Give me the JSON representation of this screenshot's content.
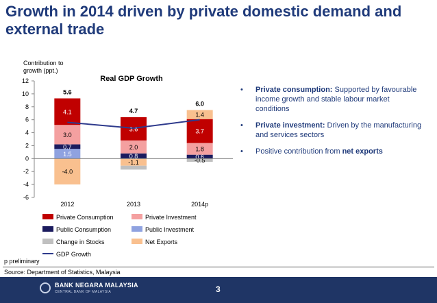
{
  "slide": {
    "title": "Growth in 2014 driven by private domestic demand and external trade",
    "note": "p preliminary",
    "source": "Source: Department of Statistics, Malaysia",
    "page_number": "3",
    "bank_name": "BANK NEGARA MALAYSIA",
    "bank_subtitle": "CENTRAL BANK OF MALAYSIA",
    "footer_color": "#1f3565"
  },
  "bullets": [
    {
      "bold": "Private consumption:",
      "text": " Supported by favourable income growth and stable labour market conditions"
    },
    {
      "bold": "Private investment:",
      "text": " Driven by the manufacturing and services sectors"
    },
    {
      "pre": "Positive contribution from ",
      "bold": "net exports",
      "text": ""
    }
  ],
  "chart_data": {
    "type": "bar",
    "stacked": true,
    "title": "Real GDP Growth",
    "ylabel": "Contribution to growth (ppt.)",
    "ylim": [
      -6,
      12
    ],
    "yticks": [
      -6,
      -4,
      -2,
      0,
      2,
      4,
      6,
      8,
      10,
      12
    ],
    "categories": [
      "2012",
      "2013",
      "2014p"
    ],
    "series": [
      {
        "name": "Public Investment",
        "color": "#8fa2e0",
        "values": [
          1.5,
          0,
          0
        ],
        "labels": [
          "1.5",
          "",
          ""
        ]
      },
      {
        "name": "Public Consumption",
        "color": "#1b1b5e",
        "values": [
          0.7,
          0.8,
          0.6
        ],
        "labels": [
          "0.7",
          "0.8",
          "0.6"
        ]
      },
      {
        "name": "Private Investment",
        "color": "#f4a0a0",
        "values": [
          3.0,
          2.0,
          1.8
        ],
        "labels": [
          "3.0",
          "2.0",
          "1.8"
        ]
      },
      {
        "name": "Private Consumption",
        "color": "#c00000",
        "values": [
          4.1,
          3.6,
          3.7
        ],
        "labels": [
          "4.1",
          "3.6",
          "3.7"
        ]
      },
      {
        "name": "Net Exports",
        "color": "#f9c08f",
        "values": [
          -4.0,
          -1.1,
          1.4
        ],
        "labels": [
          "-4.0",
          "-1.1",
          "1.4"
        ]
      },
      {
        "name": "Change in Stocks",
        "color": "#c0c0c0",
        "values": [
          0,
          -0.6,
          -0.5
        ],
        "labels": [
          "",
          "",
          "-0.5"
        ]
      }
    ],
    "line": {
      "name": "GDP Growth",
      "color": "#2e3a8c",
      "values": [
        5.6,
        4.7,
        6.0
      ]
    },
    "gdp_labels": [
      "5.6",
      "4.7",
      "6.0"
    ],
    "legend": [
      {
        "name": "Private Consumption",
        "color": "#c00000",
        "kind": "box"
      },
      {
        "name": "Private Investment",
        "color": "#f4a0a0",
        "kind": "box"
      },
      {
        "name": "Public Consumption",
        "color": "#1b1b5e",
        "kind": "box"
      },
      {
        "name": "Public Investment",
        "color": "#8fa2e0",
        "kind": "box"
      },
      {
        "name": "Change in Stocks",
        "color": "#c0c0c0",
        "kind": "box"
      },
      {
        "name": "Net Exports",
        "color": "#f9c08f",
        "kind": "box"
      },
      {
        "name": "GDP Growth",
        "color": "#2e3a8c",
        "kind": "line"
      }
    ],
    "legend_placement": "bottom",
    "grid": false
  }
}
